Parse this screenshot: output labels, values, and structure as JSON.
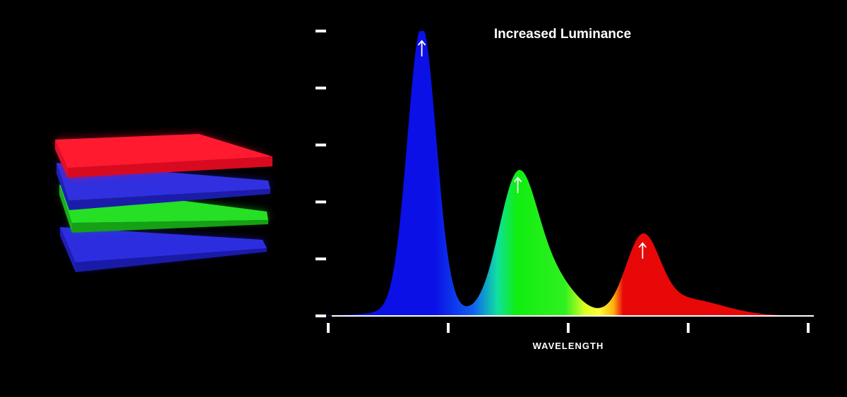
{
  "chart_data": {
    "type": "area",
    "title": "Increased Luminance",
    "xlabel": "WAVELENGTH",
    "ylabel": "",
    "x_tick_count": 5,
    "y_tick_count": 6,
    "grid": false,
    "legend": "none",
    "peaks": [
      {
        "color": "blue",
        "x": 0.195,
        "y": 1.0
      },
      {
        "color": "green",
        "x": 0.395,
        "y": 0.52
      },
      {
        "color": "red",
        "x": 0.655,
        "y": 0.29
      }
    ],
    "colors": {
      "background": "#000000",
      "blue": "#0a10e6",
      "green": "#10ee10",
      "yellow": "#ffff33",
      "red": "#e80808",
      "axis": "#ffffff"
    }
  },
  "layers": [
    {
      "name": "red-layer",
      "color": "#ff1a2e"
    },
    {
      "name": "blue-layer",
      "color": "#2a2ad8"
    },
    {
      "name": "green-layer",
      "color": "#22d822"
    },
    {
      "name": "blue-bottom-layer",
      "color": "#2525d0"
    }
  ]
}
